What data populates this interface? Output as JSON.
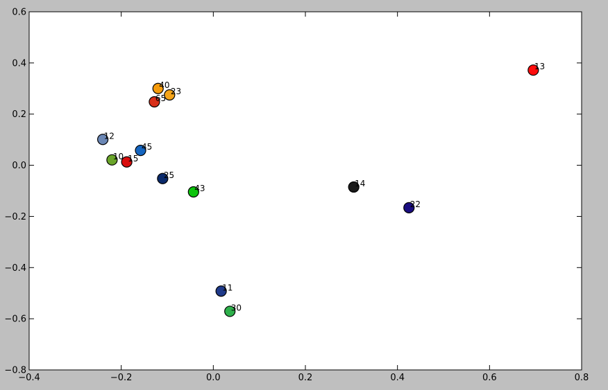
{
  "colors": {
    "figure_background": "#bfbfbf",
    "axes_background": "#ffffff",
    "axis_color": "#000000",
    "marker_edge": "#000000"
  },
  "chart_data": {
    "type": "scatter",
    "title": "",
    "xlabel": "",
    "ylabel": "",
    "xlim": [
      -0.4,
      0.8
    ],
    "ylim": [
      -0.8,
      0.6
    ],
    "grid": false,
    "legend": "none",
    "x_ticks": [
      -0.4,
      -0.2,
      0.0,
      0.2,
      0.4,
      0.6,
      0.8
    ],
    "x_tick_labels": [
      "−0.4",
      "−0.2",
      "0.0",
      "0.2",
      "0.4",
      "0.6",
      "0.8"
    ],
    "y_ticks": [
      0.6,
      0.4,
      0.2,
      0.0,
      -0.2,
      -0.4,
      -0.6,
      -0.8
    ],
    "y_tick_labels": [
      "0.6",
      "0.4",
      "0.2",
      "0.0",
      "−0.2",
      "−0.4",
      "−0.6",
      "−0.8"
    ],
    "points": [
      {
        "label": "13",
        "x": 0.695,
        "y": 0.372,
        "color": "#ff0d0d"
      },
      {
        "label": "40",
        "x": -0.12,
        "y": 0.3,
        "color": "#f59b0b"
      },
      {
        "label": "23",
        "x": -0.095,
        "y": 0.275,
        "color": "#f5a419"
      },
      {
        "label": "65",
        "x": -0.128,
        "y": 0.248,
        "color": "#d9301a"
      },
      {
        "label": "12",
        "x": -0.24,
        "y": 0.101,
        "color": "#6b87b5"
      },
      {
        "label": "45",
        "x": -0.158,
        "y": 0.058,
        "color": "#1565c0"
      },
      {
        "label": "10",
        "x": -0.22,
        "y": 0.021,
        "color": "#6aa52a"
      },
      {
        "label": "15",
        "x": -0.188,
        "y": 0.013,
        "color": "#d90d0d"
      },
      {
        "label": "25",
        "x": -0.11,
        "y": -0.052,
        "color": "#0a2a6b"
      },
      {
        "label": "43",
        "x": -0.043,
        "y": -0.104,
        "color": "#0dc40d"
      },
      {
        "label": "14",
        "x": 0.305,
        "y": -0.085,
        "color": "#1a1a1a"
      },
      {
        "label": "22",
        "x": 0.425,
        "y": -0.166,
        "color": "#1a0d80"
      },
      {
        "label": "11",
        "x": 0.017,
        "y": -0.492,
        "color": "#1f3a8a"
      },
      {
        "label": "30",
        "x": 0.036,
        "y": -0.571,
        "color": "#2eb04b"
      }
    ]
  }
}
